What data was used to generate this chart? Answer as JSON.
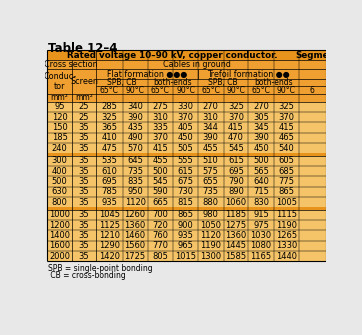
{
  "title": "Table 12–4",
  "header_title": "Rated voltage 10–90 kV, copper conductor.",
  "header_right": "Segme",
  "orange_header": "#E8941C",
  "orange_data": "#F5BE6A",
  "orange_light": "#FAD090",
  "white": "#FFFFFF",
  "black": "#000000",
  "gray_line": "#C0A060",
  "rows": [
    [
      95,
      25,
      285,
      340,
      275,
      330,
      270,
      325,
      270,
      325
    ],
    [
      120,
      25,
      325,
      390,
      310,
      370,
      310,
      370,
      305,
      370
    ],
    [
      150,
      35,
      365,
      435,
      335,
      405,
      344,
      415,
      345,
      415
    ],
    [
      185,
      35,
      410,
      490,
      370,
      450,
      390,
      470,
      390,
      465
    ],
    [
      240,
      35,
      475,
      570,
      415,
      505,
      455,
      545,
      450,
      540
    ],
    [
      300,
      35,
      535,
      645,
      455,
      555,
      510,
      615,
      500,
      605
    ],
    [
      400,
      35,
      610,
      735,
      500,
      615,
      575,
      695,
      565,
      685
    ],
    [
      500,
      35,
      695,
      835,
      545,
      675,
      655,
      790,
      640,
      775
    ],
    [
      630,
      35,
      785,
      950,
      590,
      730,
      735,
      890,
      715,
      865
    ],
    [
      800,
      35,
      935,
      1120,
      665,
      815,
      880,
      1060,
      830,
      1005
    ],
    [
      1000,
      35,
      1045,
      1260,
      700,
      865,
      980,
      1185,
      915,
      1115
    ],
    [
      1200,
      35,
      1125,
      1360,
      720,
      900,
      1050,
      1275,
      975,
      1190
    ],
    [
      1400,
      35,
      1210,
      1460,
      760,
      935,
      1120,
      1360,
      1030,
      1265
    ],
    [
      1600,
      35,
      1290,
      1560,
      770,
      965,
      1190,
      1445,
      1080,
      1330
    ],
    [
      2000,
      35,
      1420,
      1725,
      805,
      1015,
      1300,
      1585,
      1165,
      1440
    ]
  ],
  "footer_lines": [
    "SPB = single-point bonding",
    " CB = cross-bonding"
  ],
  "group_breaks": [
    5,
    10
  ]
}
